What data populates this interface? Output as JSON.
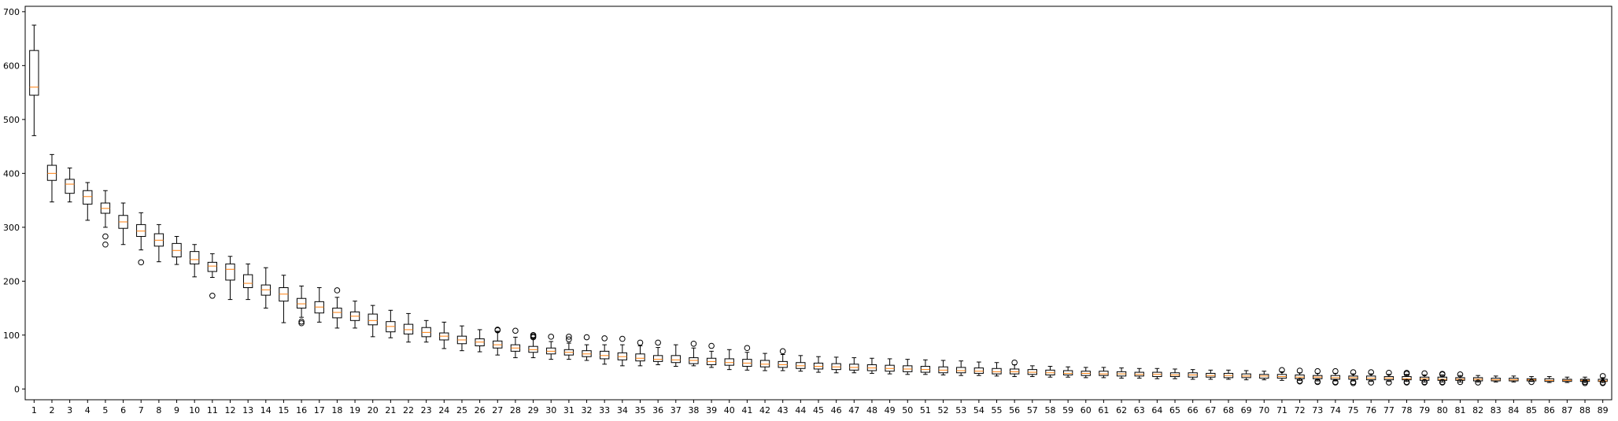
{
  "chart_data": {
    "type": "box",
    "title": "",
    "xlabel": "",
    "ylabel": "",
    "ylim": [
      -20,
      710
    ],
    "yticks": [
      0,
      100,
      200,
      300,
      400,
      500,
      600,
      700
    ],
    "grid": false,
    "legend": "none",
    "colors": {
      "box": "#000000",
      "median": "#ff7f0e",
      "outlier": "#000000"
    },
    "categories": [
      "1",
      "2",
      "3",
      "4",
      "5",
      "6",
      "7",
      "8",
      "9",
      "10",
      "11",
      "12",
      "13",
      "14",
      "15",
      "16",
      "17",
      "18",
      "19",
      "20",
      "21",
      "22",
      "23",
      "24",
      "25",
      "26",
      "27",
      "28",
      "29",
      "30",
      "31",
      "32",
      "33",
      "34",
      "35",
      "36",
      "37",
      "38",
      "39",
      "40",
      "41",
      "42",
      "43",
      "44",
      "45",
      "46",
      "47",
      "48",
      "49",
      "50",
      "51",
      "52",
      "53",
      "54",
      "55",
      "56",
      "57",
      "58",
      "59",
      "60",
      "61",
      "62",
      "63",
      "64",
      "65",
      "66",
      "67",
      "68",
      "69",
      "70",
      "71",
      "72",
      "73",
      "74",
      "75",
      "76",
      "77",
      "78",
      "79",
      "80",
      "81",
      "82",
      "83",
      "84",
      "85",
      "86",
      "87",
      "88",
      "89"
    ],
    "boxes": [
      {
        "whislo": 470,
        "q1": 545,
        "med": 560,
        "q3": 628,
        "whishi": 675,
        "fliers": []
      },
      {
        "whislo": 347,
        "q1": 387,
        "med": 400,
        "q3": 415,
        "whishi": 435,
        "fliers": []
      },
      {
        "whislo": 347,
        "q1": 363,
        "med": 380,
        "q3": 389,
        "whishi": 410,
        "fliers": []
      },
      {
        "whislo": 313,
        "q1": 343,
        "med": 357,
        "q3": 368,
        "whishi": 383,
        "fliers": []
      },
      {
        "whislo": 300,
        "q1": 326,
        "med": 335,
        "q3": 345,
        "whishi": 368,
        "fliers": [
          283,
          268
        ]
      },
      {
        "whislo": 268,
        "q1": 298,
        "med": 310,
        "q3": 322,
        "whishi": 345,
        "fliers": []
      },
      {
        "whislo": 258,
        "q1": 283,
        "med": 293,
        "q3": 305,
        "whishi": 327,
        "fliers": [
          235
        ]
      },
      {
        "whislo": 236,
        "q1": 265,
        "med": 276,
        "q3": 288,
        "whishi": 305,
        "fliers": []
      },
      {
        "whislo": 231,
        "q1": 245,
        "med": 257,
        "q3": 270,
        "whishi": 283,
        "fliers": []
      },
      {
        "whislo": 208,
        "q1": 232,
        "med": 240,
        "q3": 255,
        "whishi": 268,
        "fliers": []
      },
      {
        "whislo": 207,
        "q1": 218,
        "med": 228,
        "q3": 235,
        "whishi": 251,
        "fliers": [
          173
        ]
      },
      {
        "whislo": 166,
        "q1": 202,
        "med": 222,
        "q3": 232,
        "whishi": 246,
        "fliers": []
      },
      {
        "whislo": 166,
        "q1": 188,
        "med": 196,
        "q3": 212,
        "whishi": 232,
        "fliers": []
      },
      {
        "whislo": 150,
        "q1": 174,
        "med": 184,
        "q3": 193,
        "whishi": 225,
        "fliers": []
      },
      {
        "whislo": 123,
        "q1": 163,
        "med": 176,
        "q3": 188,
        "whishi": 211,
        "fliers": []
      },
      {
        "whislo": 133,
        "q1": 150,
        "med": 158,
        "q3": 168,
        "whishi": 191,
        "fliers": [
          125,
          122
        ]
      },
      {
        "whislo": 124,
        "q1": 141,
        "med": 152,
        "q3": 162,
        "whishi": 188,
        "fliers": []
      },
      {
        "whislo": 113,
        "q1": 132,
        "med": 142,
        "q3": 150,
        "whishi": 170,
        "fliers": [
          183
        ]
      },
      {
        "whislo": 113,
        "q1": 127,
        "med": 135,
        "q3": 143,
        "whishi": 163,
        "fliers": []
      },
      {
        "whislo": 97,
        "q1": 119,
        "med": 127,
        "q3": 139,
        "whishi": 155,
        "fliers": []
      },
      {
        "whislo": 95,
        "q1": 106,
        "med": 116,
        "q3": 125,
        "whishi": 146,
        "fliers": []
      },
      {
        "whislo": 87,
        "q1": 102,
        "med": 110,
        "q3": 120,
        "whishi": 140,
        "fliers": []
      },
      {
        "whislo": 87,
        "q1": 97,
        "med": 105,
        "q3": 114,
        "whishi": 127,
        "fliers": []
      },
      {
        "whislo": 75,
        "q1": 91,
        "med": 98,
        "q3": 104,
        "whishi": 124,
        "fliers": []
      },
      {
        "whislo": 71,
        "q1": 84,
        "med": 91,
        "q3": 98,
        "whishi": 117,
        "fliers": []
      },
      {
        "whislo": 69,
        "q1": 80,
        "med": 87,
        "q3": 93,
        "whishi": 110,
        "fliers": []
      },
      {
        "whislo": 63,
        "q1": 76,
        "med": 82,
        "q3": 89,
        "whishi": 107,
        "fliers": [
          110,
          109
        ]
      },
      {
        "whislo": 58,
        "q1": 70,
        "med": 76,
        "q3": 82,
        "whishi": 96,
        "fliers": [
          108
        ]
      },
      {
        "whislo": 58,
        "q1": 68,
        "med": 73,
        "q3": 79,
        "whishi": 94,
        "fliers": [
          100,
          98,
          96
        ]
      },
      {
        "whislo": 55,
        "q1": 65,
        "med": 70,
        "q3": 76,
        "whishi": 88,
        "fliers": [
          97
        ]
      },
      {
        "whislo": 55,
        "q1": 63,
        "med": 68,
        "q3": 73,
        "whishi": 85,
        "fliers": [
          97,
          92
        ]
      },
      {
        "whislo": 53,
        "q1": 60,
        "med": 65,
        "q3": 71,
        "whishi": 82,
        "fliers": [
          96
        ]
      },
      {
        "whislo": 46,
        "q1": 56,
        "med": 62,
        "q3": 70,
        "whishi": 82,
        "fliers": [
          94
        ]
      },
      {
        "whislo": 43,
        "q1": 54,
        "med": 60,
        "q3": 67,
        "whishi": 82,
        "fliers": [
          93
        ]
      },
      {
        "whislo": 43,
        "q1": 52,
        "med": 57,
        "q3": 65,
        "whishi": 80,
        "fliers": [
          86
        ]
      },
      {
        "whislo": 45,
        "q1": 51,
        "med": 55,
        "q3": 62,
        "whishi": 77,
        "fliers": [
          86
        ]
      },
      {
        "whislo": 42,
        "q1": 49,
        "med": 54,
        "q3": 62,
        "whishi": 82,
        "fliers": []
      },
      {
        "whislo": 43,
        "q1": 47,
        "med": 53,
        "q3": 58,
        "whishi": 76,
        "fliers": [
          84
        ]
      },
      {
        "whislo": 40,
        "q1": 45,
        "med": 51,
        "q3": 57,
        "whishi": 70,
        "fliers": [
          80
        ]
      },
      {
        "whislo": 36,
        "q1": 44,
        "med": 49,
        "q3": 56,
        "whishi": 73,
        "fliers": []
      },
      {
        "whislo": 35,
        "q1": 42,
        "med": 48,
        "q3": 55,
        "whishi": 68,
        "fliers": [
          76
        ]
      },
      {
        "whislo": 34,
        "q1": 41,
        "med": 46,
        "q3": 53,
        "whishi": 66,
        "fliers": []
      },
      {
        "whislo": 34,
        "q1": 40,
        "med": 45,
        "q3": 51,
        "whishi": 64,
        "fliers": [
          70
        ]
      },
      {
        "whislo": 33,
        "q1": 38,
        "med": 43,
        "q3": 49,
        "whishi": 62,
        "fliers": []
      },
      {
        "whislo": 31,
        "q1": 37,
        "med": 42,
        "q3": 48,
        "whishi": 60,
        "fliers": []
      },
      {
        "whislo": 30,
        "q1": 36,
        "med": 41,
        "q3": 47,
        "whishi": 59,
        "fliers": []
      },
      {
        "whislo": 30,
        "q1": 35,
        "med": 40,
        "q3": 46,
        "whishi": 58,
        "fliers": []
      },
      {
        "whislo": 29,
        "q1": 34,
        "med": 39,
        "q3": 45,
        "whishi": 57,
        "fliers": []
      },
      {
        "whislo": 28,
        "q1": 33,
        "med": 38,
        "q3": 44,
        "whishi": 56,
        "fliers": []
      },
      {
        "whislo": 27,
        "q1": 32,
        "med": 37,
        "q3": 43,
        "whishi": 55,
        "fliers": []
      },
      {
        "whislo": 27,
        "q1": 31,
        "med": 36,
        "q3": 42,
        "whishi": 54,
        "fliers": []
      },
      {
        "whislo": 26,
        "q1": 30,
        "med": 35,
        "q3": 41,
        "whishi": 53,
        "fliers": []
      },
      {
        "whislo": 25,
        "q1": 30,
        "med": 34,
        "q3": 40,
        "whishi": 52,
        "fliers": []
      },
      {
        "whislo": 25,
        "q1": 29,
        "med": 33,
        "q3": 39,
        "whishi": 50,
        "fliers": []
      },
      {
        "whislo": 24,
        "q1": 28,
        "med": 32,
        "q3": 38,
        "whishi": 49,
        "fliers": []
      },
      {
        "whislo": 23,
        "q1": 28,
        "med": 32,
        "q3": 37,
        "whishi": 45,
        "fliers": [
          49
        ]
      },
      {
        "whislo": 23,
        "q1": 27,
        "med": 31,
        "q3": 36,
        "whishi": 43,
        "fliers": []
      },
      {
        "whislo": 22,
        "q1": 26,
        "med": 30,
        "q3": 35,
        "whishi": 42,
        "fliers": []
      },
      {
        "whislo": 22,
        "q1": 26,
        "med": 29,
        "q3": 34,
        "whishi": 41,
        "fliers": []
      },
      {
        "whislo": 21,
        "q1": 25,
        "med": 29,
        "q3": 33,
        "whishi": 40,
        "fliers": []
      },
      {
        "whislo": 21,
        "q1": 25,
        "med": 28,
        "q3": 33,
        "whishi": 40,
        "fliers": []
      },
      {
        "whislo": 20,
        "q1": 24,
        "med": 28,
        "q3": 32,
        "whishi": 39,
        "fliers": []
      },
      {
        "whislo": 20,
        "q1": 24,
        "med": 27,
        "q3": 31,
        "whishi": 38,
        "fliers": []
      },
      {
        "whislo": 19,
        "q1": 23,
        "med": 27,
        "q3": 31,
        "whishi": 38,
        "fliers": []
      },
      {
        "whislo": 19,
        "q1": 23,
        "med": 26,
        "q3": 30,
        "whishi": 37,
        "fliers": []
      },
      {
        "whislo": 18,
        "q1": 22,
        "med": 26,
        "q3": 30,
        "whishi": 36,
        "fliers": []
      },
      {
        "whislo": 18,
        "q1": 22,
        "med": 25,
        "q3": 29,
        "whishi": 35,
        "fliers": []
      },
      {
        "whislo": 18,
        "q1": 21,
        "med": 25,
        "q3": 29,
        "whishi": 35,
        "fliers": []
      },
      {
        "whislo": 17,
        "q1": 21,
        "med": 24,
        "q3": 28,
        "whishi": 34,
        "fliers": []
      },
      {
        "whislo": 17,
        "q1": 20,
        "med": 24,
        "q3": 27,
        "whishi": 33,
        "fliers": []
      },
      {
        "whislo": 16,
        "q1": 20,
        "med": 23,
        "q3": 27,
        "whishi": 32,
        "fliers": [
          35
        ]
      },
      {
        "whislo": 16,
        "q1": 19,
        "med": 22,
        "q3": 26,
        "whishi": 30,
        "fliers": [
          34,
          15,
          14
        ]
      },
      {
        "whislo": 15,
        "q1": 19,
        "med": 22,
        "q3": 25,
        "whishi": 29,
        "fliers": [
          33,
          14,
          13
        ]
      },
      {
        "whislo": 15,
        "q1": 18,
        "med": 21,
        "q3": 25,
        "whishi": 29,
        "fliers": [
          33,
          13,
          12
        ]
      },
      {
        "whislo": 15,
        "q1": 18,
        "med": 21,
        "q3": 24,
        "whishi": 28,
        "fliers": [
          31,
          13,
          11
        ]
      },
      {
        "whislo": 14,
        "q1": 17,
        "med": 20,
        "q3": 24,
        "whishi": 28,
        "fliers": [
          31,
          12
        ]
      },
      {
        "whislo": 14,
        "q1": 17,
        "med": 20,
        "q3": 23,
        "whishi": 27,
        "fliers": [
          30,
          12
        ]
      },
      {
        "whislo": 14,
        "q1": 17,
        "med": 19,
        "q3": 23,
        "whishi": 27,
        "fliers": [
          30,
          28,
          13,
          12
        ]
      },
      {
        "whislo": 13,
        "q1": 16,
        "med": 19,
        "q3": 22,
        "whishi": 26,
        "fliers": [
          29,
          13,
          12
        ]
      },
      {
        "whislo": 13,
        "q1": 16,
        "med": 18,
        "q3": 22,
        "whishi": 26,
        "fliers": [
          28,
          27,
          13,
          12
        ]
      },
      {
        "whislo": 13,
        "q1": 16,
        "med": 18,
        "q3": 21,
        "whishi": 25,
        "fliers": [
          27,
          13
        ]
      },
      {
        "whislo": 13,
        "q1": 15,
        "med": 18,
        "q3": 21,
        "whishi": 25,
        "fliers": [
          12
        ]
      },
      {
        "whislo": 13,
        "q1": 15,
        "med": 17,
        "q3": 20,
        "whishi": 24,
        "fliers": []
      },
      {
        "whislo": 13,
        "q1": 15,
        "med": 17,
        "q3": 20,
        "whishi": 24,
        "fliers": []
      },
      {
        "whislo": 14,
        "q1": 15,
        "med": 17,
        "q3": 19,
        "whishi": 23,
        "fliers": [
          13
        ]
      },
      {
        "whislo": 12,
        "q1": 14,
        "med": 16,
        "q3": 19,
        "whishi": 23,
        "fliers": []
      },
      {
        "whislo": 12,
        "q1": 14,
        "med": 16,
        "q3": 18,
        "whishi": 22,
        "fliers": []
      },
      {
        "whislo": 12,
        "q1": 14,
        "med": 16,
        "q3": 18,
        "whishi": 22,
        "fliers": [
          13,
          11
        ]
      },
      {
        "whislo": 12,
        "q1": 14,
        "med": 15,
        "q3": 18,
        "whishi": 21,
        "fliers": [
          24,
          12,
          11
        ]
      }
    ]
  }
}
